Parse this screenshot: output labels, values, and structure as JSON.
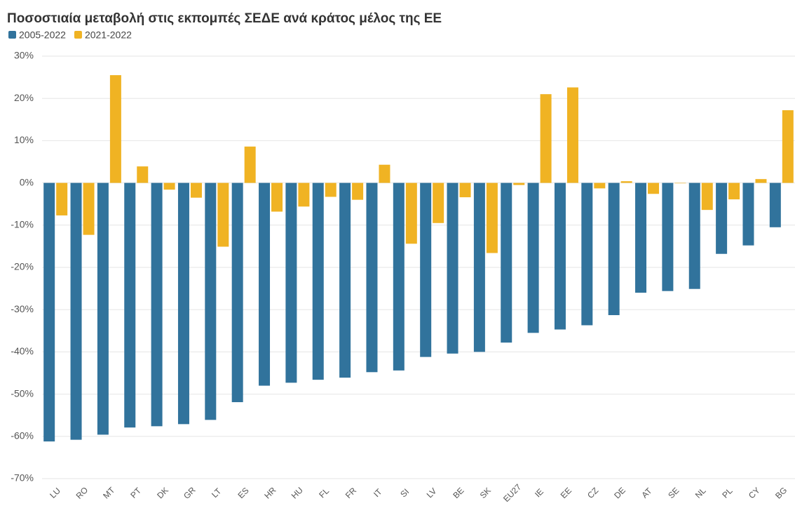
{
  "chart_data": {
    "type": "bar",
    "title": "Ποσοστιαία μεταβολή στις εκπομπές ΣΕΔΕ ανά κράτος μέλος της ΕΕ",
    "categories": [
      "LU",
      "RO",
      "MT",
      "PT",
      "DK",
      "GR",
      "LT",
      "ES",
      "HR",
      "HU",
      "FL",
      "FR",
      "IT",
      "SI",
      "LV",
      "BE",
      "SK",
      "EU27",
      "IE",
      "EE",
      "CZ",
      "DE",
      "AT",
      "SE",
      "NL",
      "PL",
      "CY",
      "BG"
    ],
    "series": [
      {
        "name": "2005-2022",
        "color": "#31739c",
        "values": [
          -61.2,
          -60.8,
          -59.6,
          -57.9,
          -57.6,
          -57.1,
          -56.1,
          -51.9,
          -48,
          -47.3,
          -46.6,
          -46.1,
          -44.8,
          -44.4,
          -41.2,
          -40.4,
          -40,
          -37.8,
          -35.5,
          -34.7,
          -33.7,
          -31.3,
          -26,
          -25.6,
          -25.1,
          -16.8,
          -14.8,
          -10.5
        ]
      },
      {
        "name": "2021-2022",
        "color": "#f0b323",
        "values": [
          -7.7,
          -12.3,
          25.5,
          3.9,
          -1.6,
          -3.5,
          -15.1,
          8.6,
          -6.8,
          -5.6,
          -3.3,
          -4,
          4.3,
          -14.4,
          -9.5,
          -3.4,
          -16.6,
          -0.5,
          21,
          22.6,
          -1.3,
          0.4,
          -2.6,
          -0.1,
          -6.4,
          -3.9,
          0.9,
          17.2
        ]
      }
    ],
    "ylim": [
      -70,
      30
    ],
    "yticks": [
      {
        "value": -70,
        "label": "-70%"
      },
      {
        "value": -60,
        "label": "-60%"
      },
      {
        "value": -50,
        "label": "-50%"
      },
      {
        "value": -40,
        "label": "-40%"
      },
      {
        "value": -30,
        "label": "-30%"
      },
      {
        "value": -20,
        "label": "-20%"
      },
      {
        "value": -10,
        "label": "-10%"
      },
      {
        "value": 0,
        "label": "0%"
      },
      {
        "value": 10,
        "label": "10%"
      },
      {
        "value": 20,
        "label": "20%"
      },
      {
        "value": 30,
        "label": "30%"
      }
    ],
    "grid": true
  }
}
